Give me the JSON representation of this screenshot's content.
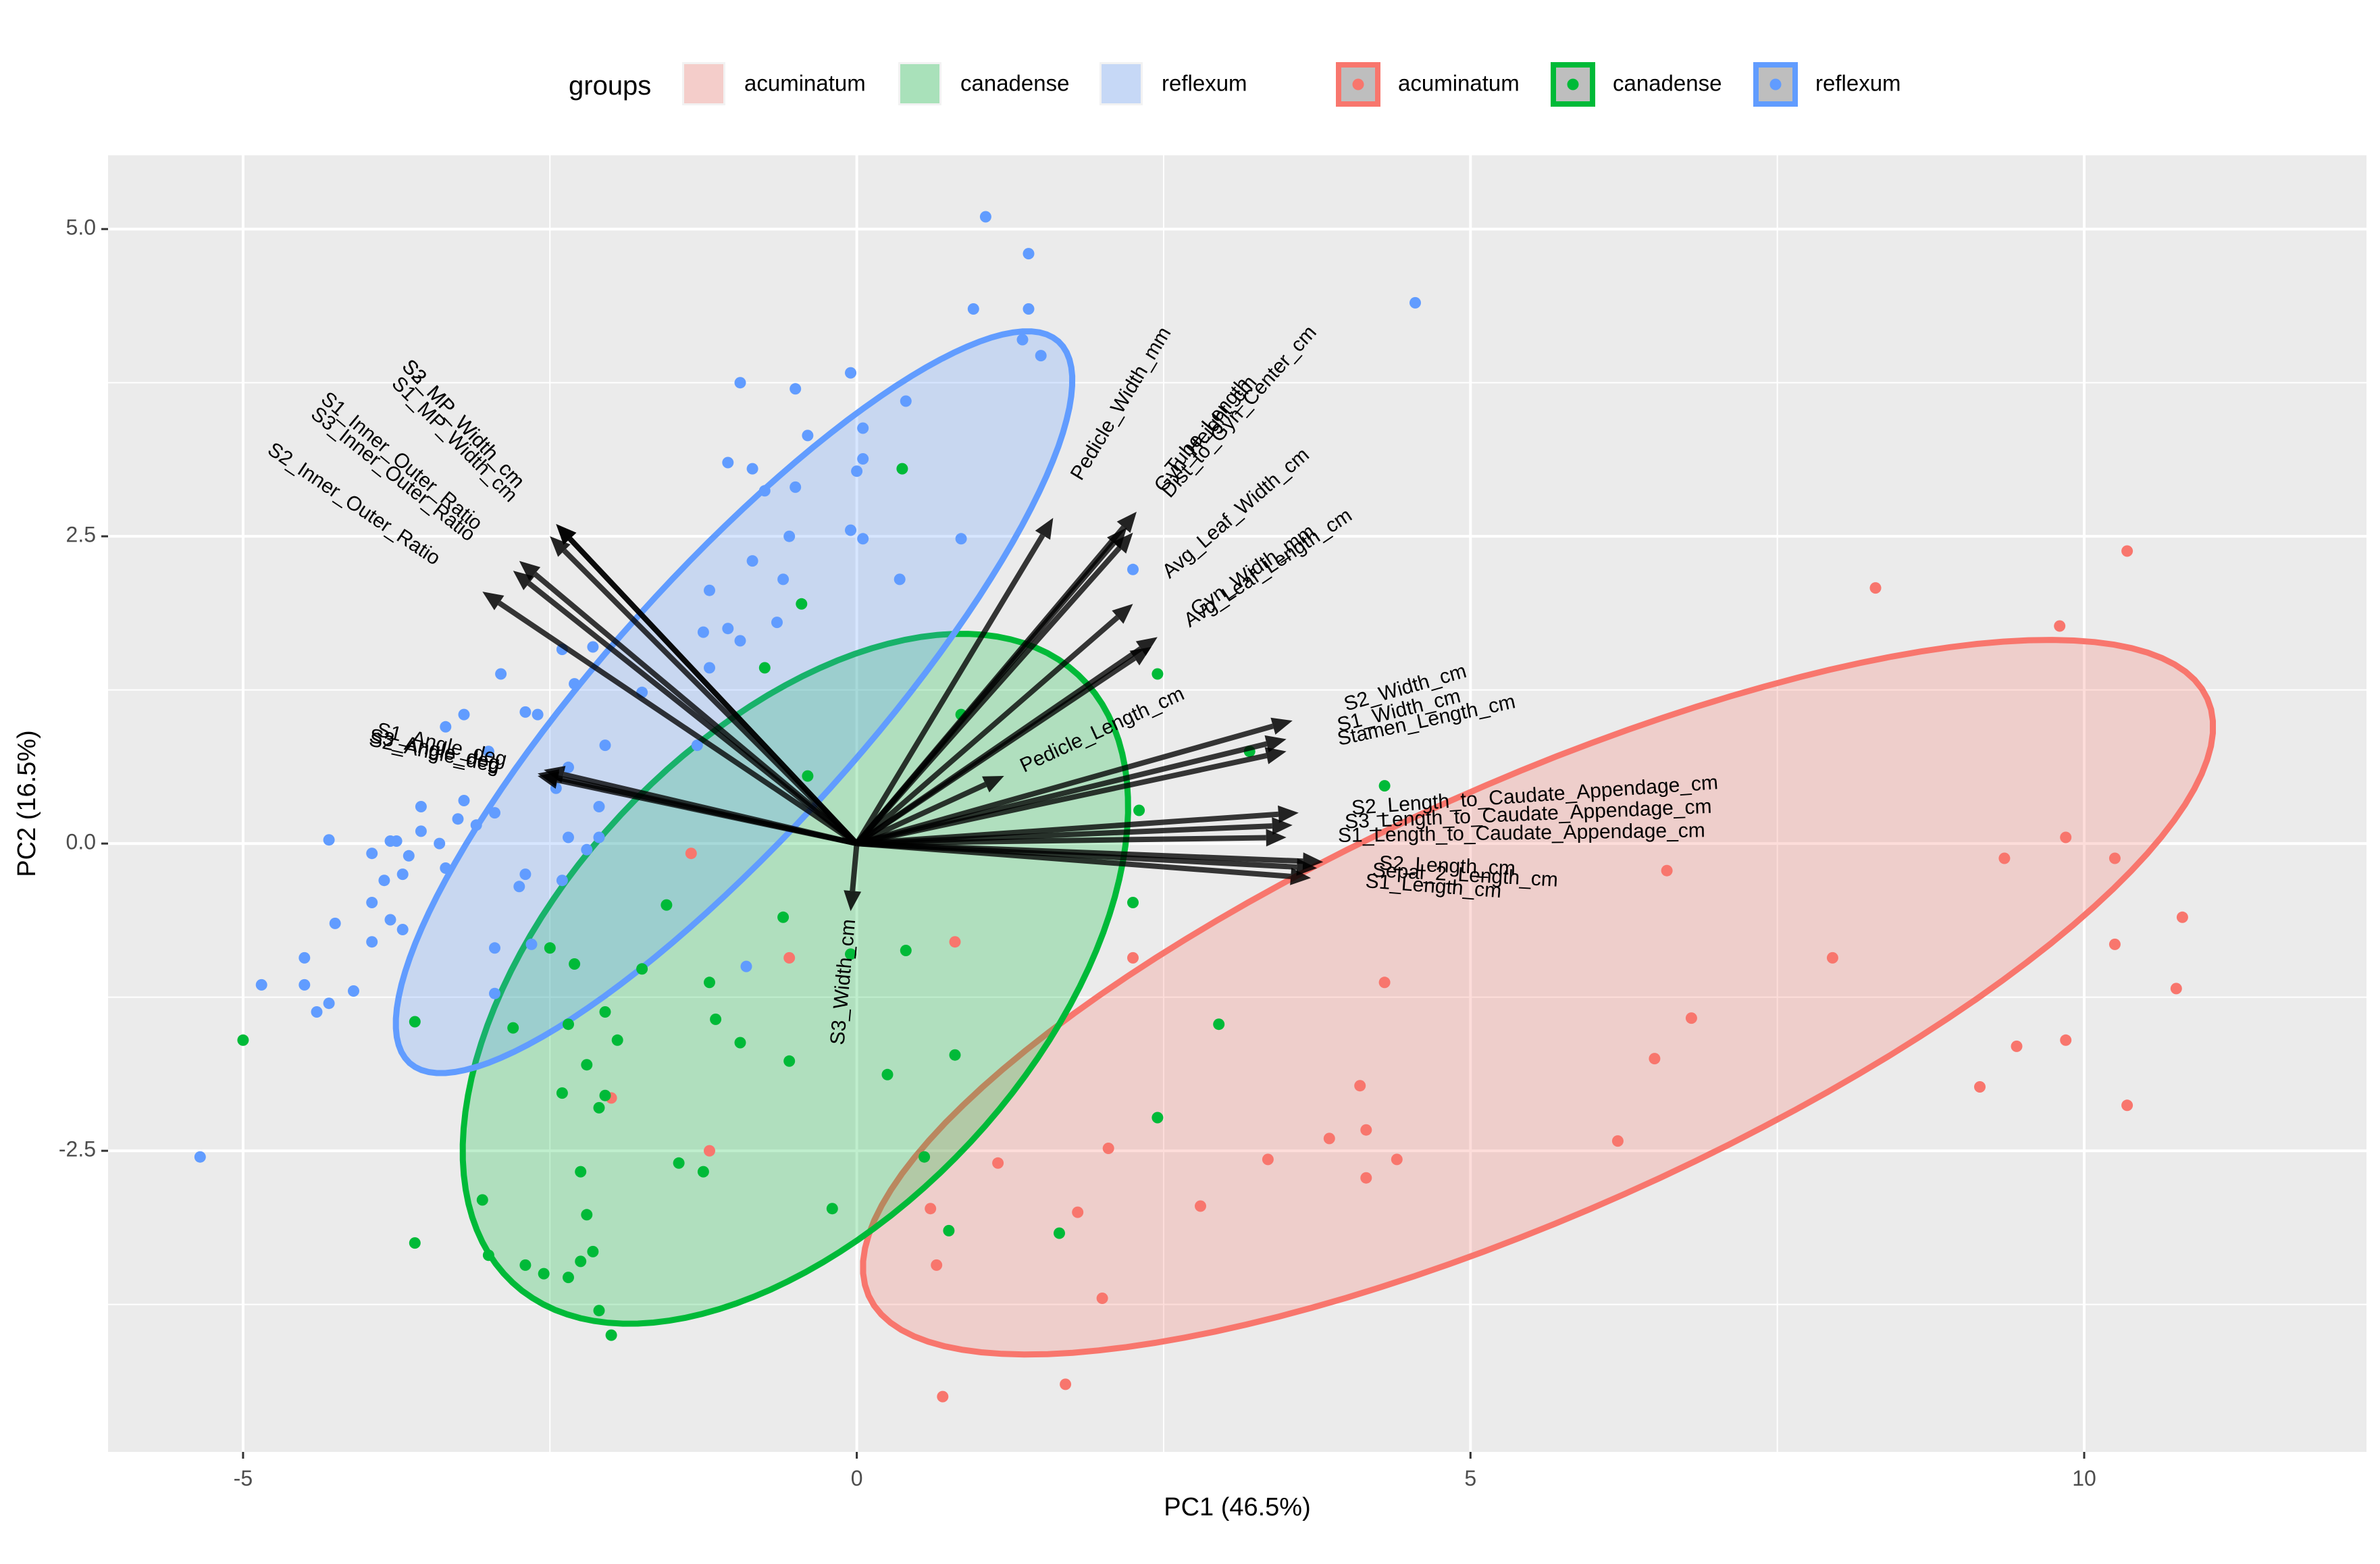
{
  "chart_data": {
    "type": "scatter",
    "title": "",
    "xlabel": "PC1 (46.5%)",
    "ylabel": "PC2 (16.5%)",
    "xlim": [
      -6.1,
      12.3
    ],
    "ylim": [
      -4.95,
      5.6
    ],
    "x_ticks": [
      -5,
      0,
      5,
      10
    ],
    "y_ticks": [
      -2.5,
      0.0,
      2.5,
      5.0
    ],
    "x_tick_labels": [
      "-5",
      "0",
      "5",
      "10"
    ],
    "y_tick_labels": [
      "-2.5",
      "0.0",
      "2.5",
      "5.0"
    ],
    "grid": true,
    "legend_position": "top",
    "legend": {
      "title": "groups",
      "fill_labels": [
        "acuminatum",
        "canadense",
        "reflexum"
      ],
      "point_labels": [
        "acuminatum",
        "canadense",
        "reflexum"
      ]
    },
    "colors": {
      "acuminatum": "#F8766D",
      "canadense": "#00BA38",
      "reflexum": "#619CFF",
      "panel": "#EBEBEB",
      "arrows": "#000000"
    },
    "series": [
      {
        "name": "acuminatum",
        "points": [
          [
            10.35,
            2.38
          ],
          [
            8.3,
            2.08
          ],
          [
            9.8,
            1.77
          ],
          [
            9.85,
            0.05
          ],
          [
            10.25,
            -0.12
          ],
          [
            9.35,
            -0.12
          ],
          [
            10.8,
            -0.6
          ],
          [
            10.25,
            -0.82
          ],
          [
            10.75,
            -1.18
          ],
          [
            9.85,
            -1.6
          ],
          [
            9.45,
            -1.65
          ],
          [
            9.15,
            -1.98
          ],
          [
            10.35,
            -2.13
          ],
          [
            7.95,
            -0.93
          ],
          [
            6.6,
            -0.22
          ],
          [
            6.8,
            -1.42
          ],
          [
            6.5,
            -1.75
          ],
          [
            6.2,
            -2.42
          ],
          [
            4.3,
            -1.13
          ],
          [
            4.1,
            -1.97
          ],
          [
            4.15,
            -2.33
          ],
          [
            3.85,
            -2.4
          ],
          [
            4.15,
            -2.72
          ],
          [
            4.4,
            -2.57
          ],
          [
            3.35,
            -2.57
          ],
          [
            2.8,
            -2.95
          ],
          [
            2.05,
            -2.48
          ],
          [
            1.8,
            -3.0
          ],
          [
            2.0,
            -3.7
          ],
          [
            1.15,
            -2.6
          ],
          [
            0.6,
            -2.97
          ],
          [
            0.65,
            -3.43
          ],
          [
            1.7,
            -4.4
          ],
          [
            0.7,
            -4.5
          ],
          [
            0.8,
            -0.8
          ],
          [
            2.25,
            -0.93
          ],
          [
            -0.55,
            -0.93
          ],
          [
            -1.35,
            -0.08
          ],
          [
            -2.0,
            -2.07
          ],
          [
            -1.2,
            -2.5
          ]
        ]
      },
      {
        "name": "canadense",
        "points": [
          [
            0.37,
            3.05
          ],
          [
            -0.45,
            1.95
          ],
          [
            -0.75,
            1.43
          ],
          [
            -0.4,
            0.55
          ],
          [
            0.85,
            1.05
          ],
          [
            2.45,
            1.38
          ],
          [
            2.3,
            0.27
          ],
          [
            3.2,
            0.75
          ],
          [
            4.3,
            0.47
          ],
          [
            -0.6,
            -0.6
          ],
          [
            0.4,
            -0.87
          ],
          [
            -0.05,
            -0.9
          ],
          [
            2.25,
            -0.48
          ],
          [
            2.95,
            -1.47
          ],
          [
            2.45,
            -2.23
          ],
          [
            1.65,
            -3.17
          ],
          [
            0.8,
            -1.72
          ],
          [
            0.75,
            -3.15
          ],
          [
            0.55,
            -2.55
          ],
          [
            0.25,
            -1.88
          ],
          [
            -0.2,
            -2.97
          ],
          [
            -0.55,
            -1.77
          ],
          [
            -0.95,
            -1.62
          ],
          [
            -1.2,
            -1.13
          ],
          [
            -1.15,
            -1.43
          ],
          [
            -1.45,
            -2.6
          ],
          [
            -1.25,
            -2.67
          ],
          [
            -1.55,
            -0.5
          ],
          [
            -1.75,
            -1.02
          ],
          [
            -1.95,
            -1.6
          ],
          [
            -2.05,
            -1.37
          ],
          [
            -2.05,
            -2.05
          ],
          [
            -2.1,
            -2.15
          ],
          [
            -2.2,
            -1.8
          ],
          [
            -2.3,
            -0.98
          ],
          [
            -2.2,
            -3.02
          ],
          [
            -2.25,
            -3.4
          ],
          [
            -2.15,
            -3.32
          ],
          [
            -2.1,
            -3.8
          ],
          [
            -2.0,
            -4.0
          ],
          [
            -2.25,
            -2.67
          ],
          [
            -2.35,
            -1.47
          ],
          [
            -2.35,
            -3.53
          ],
          [
            -2.4,
            -2.03
          ],
          [
            -2.5,
            -0.85
          ],
          [
            -2.55,
            -3.5
          ],
          [
            -2.7,
            -3.43
          ],
          [
            -2.8,
            -1.5
          ],
          [
            -3.0,
            -3.35
          ],
          [
            -3.05,
            -2.9
          ],
          [
            -3.6,
            -3.25
          ],
          [
            -5.0,
            -1.6
          ],
          [
            -3.6,
            -1.45
          ]
        ]
      },
      {
        "name": "reflexum",
        "points": [
          [
            1.05,
            5.1
          ],
          [
            1.4,
            4.8
          ],
          [
            1.4,
            4.35
          ],
          [
            1.35,
            4.1
          ],
          [
            1.5,
            3.97
          ],
          [
            0.95,
            4.35
          ],
          [
            4.55,
            4.4
          ],
          [
            -0.05,
            3.83
          ],
          [
            -0.95,
            3.75
          ],
          [
            -0.5,
            3.7
          ],
          [
            0.4,
            3.6
          ],
          [
            0.05,
            3.38
          ],
          [
            0.05,
            3.13
          ],
          [
            0.0,
            3.03
          ],
          [
            -0.4,
            3.32
          ],
          [
            -1.05,
            3.1
          ],
          [
            -0.85,
            3.05
          ],
          [
            -0.5,
            2.9
          ],
          [
            -0.75,
            2.87
          ],
          [
            -0.6,
            2.15
          ],
          [
            -0.55,
            2.5
          ],
          [
            -0.85,
            2.3
          ],
          [
            -1.2,
            2.06
          ],
          [
            -0.05,
            2.55
          ],
          [
            0.05,
            2.48
          ],
          [
            0.85,
            2.48
          ],
          [
            0.35,
            2.15
          ],
          [
            2.25,
            2.23
          ],
          [
            -0.95,
            1.65
          ],
          [
            -1.05,
            1.75
          ],
          [
            -1.25,
            1.72
          ],
          [
            -1.2,
            1.43
          ],
          [
            -0.65,
            1.8
          ],
          [
            -1.75,
            1.23
          ],
          [
            -2.3,
            1.3
          ],
          [
            -2.15,
            1.6
          ],
          [
            -2.4,
            1.58
          ],
          [
            -2.6,
            1.05
          ],
          [
            -2.7,
            1.07
          ],
          [
            -2.9,
            1.38
          ],
          [
            -3.2,
            1.05
          ],
          [
            -3.35,
            0.95
          ],
          [
            -3.0,
            0.75
          ],
          [
            -2.05,
            0.8
          ],
          [
            -2.45,
            0.45
          ],
          [
            -2.35,
            0.62
          ],
          [
            -2.1,
            0.3
          ],
          [
            -1.3,
            0.8
          ],
          [
            -2.1,
            0.05
          ],
          [
            -2.2,
            -0.05
          ],
          [
            -2.4,
            -0.3
          ],
          [
            -2.7,
            -0.25
          ],
          [
            -2.75,
            -0.35
          ],
          [
            -2.95,
            0.25
          ],
          [
            -3.1,
            0.15
          ],
          [
            -3.2,
            0.35
          ],
          [
            -3.25,
            0.2
          ],
          [
            -3.4,
            0.0
          ],
          [
            -3.55,
            0.3
          ],
          [
            -3.65,
            -0.1
          ],
          [
            -3.7,
            -0.25
          ],
          [
            -3.85,
            -0.3
          ],
          [
            -3.8,
            -0.62
          ],
          [
            -3.7,
            -0.7
          ],
          [
            -3.95,
            -0.48
          ],
          [
            -3.95,
            -0.8
          ],
          [
            -4.25,
            -0.65
          ],
          [
            -4.5,
            -0.93
          ],
          [
            -4.5,
            -1.15
          ],
          [
            -4.1,
            -1.2
          ],
          [
            -4.3,
            -1.3
          ],
          [
            -4.4,
            -1.37
          ],
          [
            -4.85,
            -1.15
          ],
          [
            -5.35,
            -2.55
          ],
          [
            -2.95,
            -0.85
          ],
          [
            -2.65,
            -0.82
          ],
          [
            -2.35,
            0.05
          ],
          [
            -0.9,
            -1.0
          ],
          [
            -2.95,
            -1.22
          ],
          [
            -3.35,
            -0.2
          ],
          [
            -3.55,
            0.1
          ],
          [
            -4.3,
            0.03
          ],
          [
            -3.8,
            0.02
          ],
          [
            -3.95,
            -0.08
          ],
          [
            -3.75,
            0.02
          ]
        ]
      }
    ],
    "ellipses": [
      {
        "name": "acuminatum",
        "center": [
          5.55,
          -1.25
        ],
        "rx": 5.97,
        "ry": 1.75,
        "angle_deg": 24
      },
      {
        "name": "canadense",
        "center": [
          -0.5,
          -1.1
        ],
        "rx": 3.38,
        "ry": 1.95,
        "angle_deg": 47
      },
      {
        "name": "reflexum",
        "center": [
          -1.0,
          1.15
        ],
        "rx": 3.95,
        "ry": 1.05,
        "angle_deg": 48
      }
    ],
    "loadings": [
      {
        "name": "S3_MP_Width_cm",
        "x": -2.45,
        "y": 2.6
      },
      {
        "name": "S2_MP_Width_cm",
        "x": -2.45,
        "y": 2.6
      },
      {
        "name": "S1_MP_Width_cm",
        "x": -2.5,
        "y": 2.5
      },
      {
        "name": "S1_Inner_Outer_Ratio",
        "x": -2.75,
        "y": 2.3
      },
      {
        "name": "S3_Inner_Outer_Ratio",
        "x": -2.8,
        "y": 2.22
      },
      {
        "name": "S2_Inner_Outer_Ratio",
        "x": -3.05,
        "y": 2.05
      },
      {
        "name": "S1_Angle_deg",
        "x": -2.55,
        "y": 0.6
      },
      {
        "name": "S2_Angle_deg",
        "x": -2.6,
        "y": 0.55
      },
      {
        "name": "S3_Angle_deg",
        "x": -2.6,
        "y": 0.57
      },
      {
        "name": "Pedicle_Width_mm",
        "x": 1.6,
        "y": 2.65
      },
      {
        "name": "Tube_Length",
        "x": 2.28,
        "y": 2.7
      },
      {
        "name": "Gyn_Height_cm",
        "x": 2.2,
        "y": 2.57
      },
      {
        "name": "Dist_to_Gyn_Center_cm",
        "x": 2.25,
        "y": 2.53
      },
      {
        "name": "Avg_Leaf_Width_cm",
        "x": 2.25,
        "y": 1.95
      },
      {
        "name": "Gyn_Width_mm",
        "x": 2.45,
        "y": 1.68
      },
      {
        "name": "Avg_Leaf_Length_cm",
        "x": 2.4,
        "y": 1.6
      },
      {
        "name": "Pedicle_Length_cm",
        "x": 1.2,
        "y": 0.55
      },
      {
        "name": "S2_Width_cm",
        "x": 3.55,
        "y": 1.0
      },
      {
        "name": "S1_Width_cm",
        "x": 3.5,
        "y": 0.85
      },
      {
        "name": "Stamen_Length_cm",
        "x": 3.5,
        "y": 0.75
      },
      {
        "name": "S2_Length_to_Caudate_Appendage_cm",
        "x": 3.6,
        "y": 0.25
      },
      {
        "name": "S3_Length_to_Caudate_Appendage_cm",
        "x": 3.55,
        "y": 0.15
      },
      {
        "name": "S1_Length_to_Caudate_Appendage_cm",
        "x": 3.5,
        "y": 0.05
      },
      {
        "name": "S2_Length_cm",
        "x": 3.8,
        "y": -0.15
      },
      {
        "name": "Sepal_2_Length_cm",
        "x": 3.75,
        "y": -0.2
      },
      {
        "name": "S1_Length_cm",
        "x": 3.7,
        "y": -0.28
      },
      {
        "name": "S3_Width_cm",
        "x": -0.05,
        "y": -0.55
      }
    ]
  }
}
